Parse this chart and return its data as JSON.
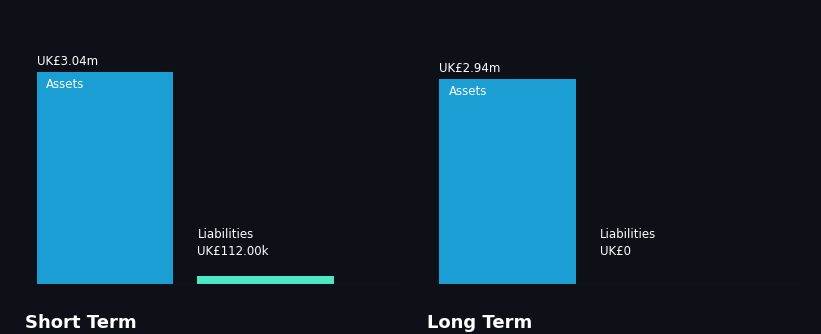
{
  "background_color": "#0d1117",
  "panels": [
    {
      "title": "Short Term",
      "bars": [
        {
          "label": "Assets",
          "value_label": "UK£3.04m",
          "value": 3.04,
          "color": "#1a9ed4",
          "x": 0,
          "label_inside": true
        },
        {
          "label": "Liabilities",
          "value_label": "UK£112.00k",
          "value": 0.112,
          "color": "#4de8c4",
          "x": 1,
          "label_inside": false
        }
      ]
    },
    {
      "title": "Long Term",
      "bars": [
        {
          "label": "Assets",
          "value_label": "UK£2.94m",
          "value": 2.94,
          "color": "#1a9ed4",
          "x": 0,
          "label_inside": true
        },
        {
          "label": "Liabilities",
          "value_label": "UK£0",
          "value": 0,
          "color": "#1a9ed4",
          "x": 1,
          "label_inside": false
        }
      ]
    }
  ],
  "text_color": "#ffffff",
  "label_fontsize": 8.5,
  "title_fontsize": 13,
  "value_label_fontsize": 8.5,
  "bar_width": 0.85,
  "max_value": 3.04,
  "line_color": "#3a3a4a"
}
